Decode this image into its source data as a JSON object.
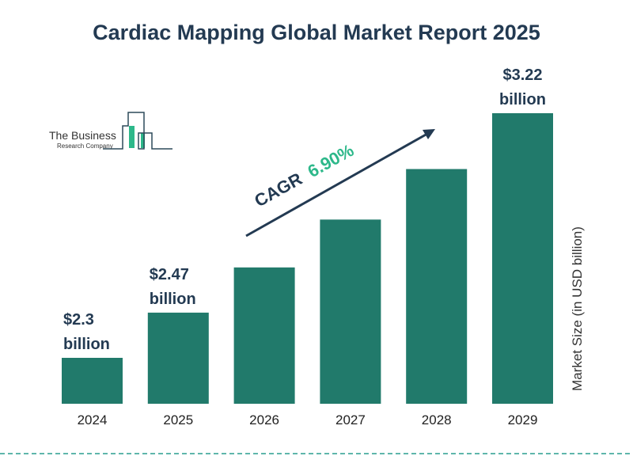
{
  "logo": {
    "line1": "The Business",
    "line2": "Research Company"
  },
  "chart_data": {
    "type": "bar",
    "title": "Cardiac Mapping Global Market Report 2025",
    "categories": [
      "2024",
      "2025",
      "2026",
      "2027",
      "2028",
      "2029"
    ],
    "values": [
      2.3,
      2.47,
      2.64,
      2.82,
      3.01,
      3.22
    ],
    "data_labels": [
      [
        "$2.3",
        "billion"
      ],
      [
        "$2.47",
        "billion"
      ],
      null,
      null,
      null,
      [
        "$3.22",
        "billion"
      ]
    ],
    "ylabel": "Market Size (in USD billion)",
    "xlabel": "",
    "annotation": {
      "label": "CAGR",
      "value": "6.90%"
    },
    "grid": false,
    "colors": {
      "bar": "#217a6b",
      "title": "#233a52",
      "cagr": "#2db88a",
      "divider": "#2a9d8f"
    }
  }
}
